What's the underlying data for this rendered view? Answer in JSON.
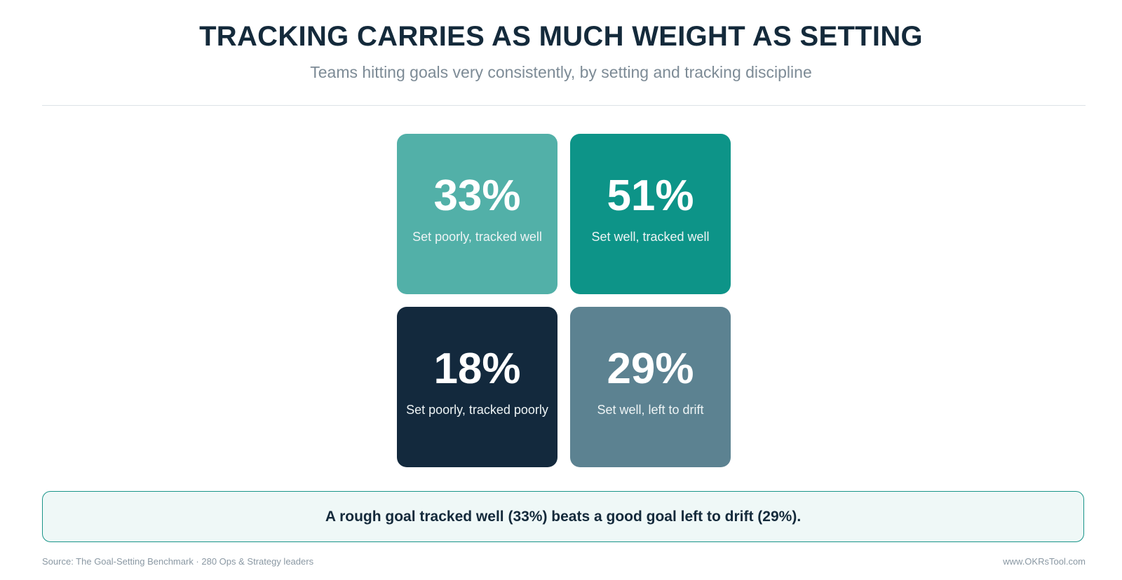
{
  "header": {
    "title": "TRACKING CARRIES AS MUCH WEIGHT AS SETTING",
    "subtitle": "Teams hitting goals very consistently, by setting and tracking discipline"
  },
  "chart_data": {
    "type": "table",
    "title": "TRACKING CARRIES AS MUCH WEIGHT AS SETTING",
    "subtitle": "Teams hitting goals very consistently, by setting and tracking discipline",
    "cells": [
      {
        "label": "Set poorly, tracked well",
        "value": 33,
        "display": "33%",
        "color": "#52b0a8"
      },
      {
        "label": "Set well, tracked well",
        "value": 51,
        "display": "51%",
        "color": "#0d9488"
      },
      {
        "label": "Set poorly, tracked poorly",
        "value": 18,
        "display": "18%",
        "color": "#13293d"
      },
      {
        "label": "Set well, left to drift",
        "value": 29,
        "display": "29%",
        "color": "#5c8291"
      }
    ]
  },
  "callout": {
    "text": "A rough goal tracked well (33%) beats a good goal left to drift (29%)."
  },
  "footer": {
    "source": "Source: The Goal-Setting Benchmark · 280 Ops & Strategy leaders",
    "url": "www.OKRsTool.com"
  }
}
